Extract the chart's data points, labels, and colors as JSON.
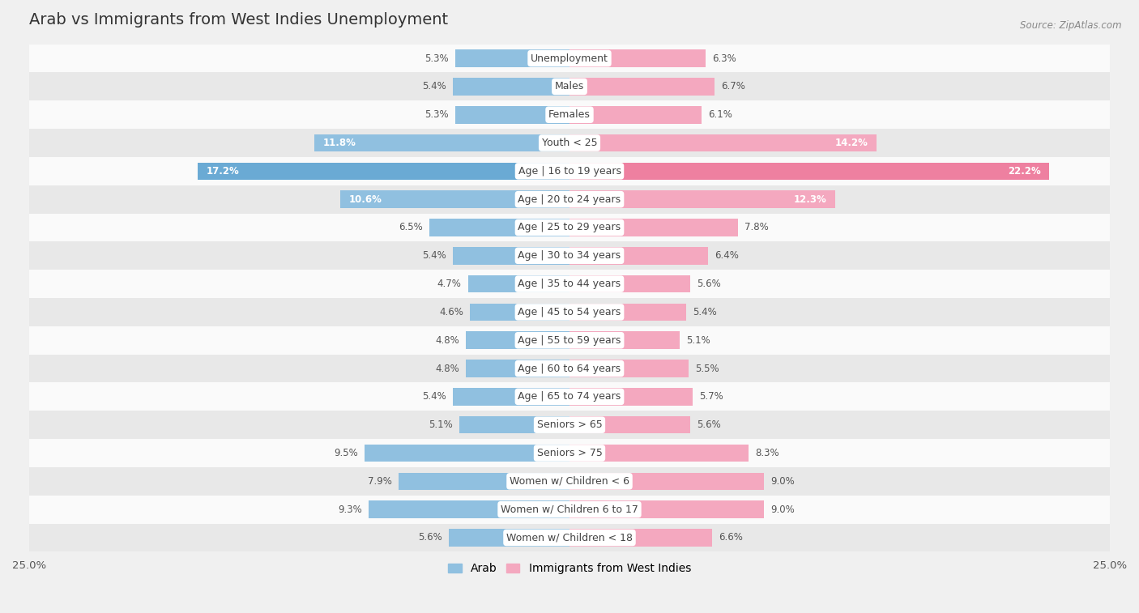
{
  "title": "Arab vs Immigrants from West Indies Unemployment",
  "source": "Source: ZipAtlas.com",
  "categories": [
    "Unemployment",
    "Males",
    "Females",
    "Youth < 25",
    "Age | 16 to 19 years",
    "Age | 20 to 24 years",
    "Age | 25 to 29 years",
    "Age | 30 to 34 years",
    "Age | 35 to 44 years",
    "Age | 45 to 54 years",
    "Age | 55 to 59 years",
    "Age | 60 to 64 years",
    "Age | 65 to 74 years",
    "Seniors > 65",
    "Seniors > 75",
    "Women w/ Children < 6",
    "Women w/ Children 6 to 17",
    "Women w/ Children < 18"
  ],
  "arab_values": [
    5.3,
    5.4,
    5.3,
    11.8,
    17.2,
    10.6,
    6.5,
    5.4,
    4.7,
    4.6,
    4.8,
    4.8,
    5.4,
    5.1,
    9.5,
    7.9,
    9.3,
    5.6
  ],
  "west_indies_values": [
    6.3,
    6.7,
    6.1,
    14.2,
    22.2,
    12.3,
    7.8,
    6.4,
    5.6,
    5.4,
    5.1,
    5.5,
    5.7,
    5.6,
    8.3,
    9.0,
    9.0,
    6.6
  ],
  "arab_color": "#90c0e0",
  "west_indies_color": "#f4a8bf",
  "arab_highlight_color": "#6aaad4",
  "west_indies_highlight_color": "#ee80a0",
  "highlight_row": 4,
  "axis_limit": 25.0,
  "bar_height": 0.62,
  "bg_color": "#f0f0f0",
  "row_color_1": "#fafafa",
  "row_color_2": "#e8e8e8",
  "label_fontsize": 9.0,
  "title_fontsize": 14,
  "value_fontsize": 8.5
}
